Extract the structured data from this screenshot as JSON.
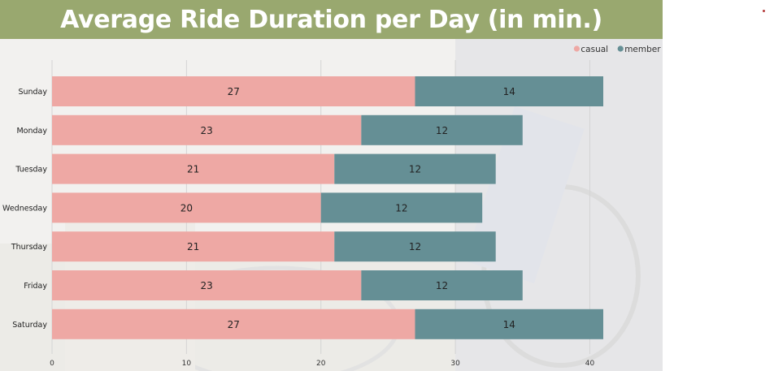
{
  "chart_data": {
    "type": "bar",
    "orientation": "horizontal",
    "stacked": true,
    "title": "Average Ride Duration per Day (in min.)",
    "xlabel": "",
    "ylabel": "",
    "categories": [
      "Sunday",
      "Monday",
      "Tuesday",
      "Wednesday",
      "Thursday",
      "Friday",
      "Saturday"
    ],
    "series": [
      {
        "name": "casual",
        "color": "#eea8a4",
        "values": [
          27,
          23,
          21,
          20,
          21,
          23,
          27
        ]
      },
      {
        "name": "member",
        "color": "#658f95",
        "values": [
          14,
          12,
          12,
          12,
          12,
          12,
          14
        ]
      }
    ],
    "xlim": [
      0,
      41
    ],
    "xticks": [
      0,
      10,
      20,
      30,
      40
    ],
    "grid": true,
    "legend_position": "top-right"
  },
  "colors": {
    "title_bar": "#99a86f",
    "title_text": "#ffffff",
    "grid": "#d4d4d4"
  }
}
